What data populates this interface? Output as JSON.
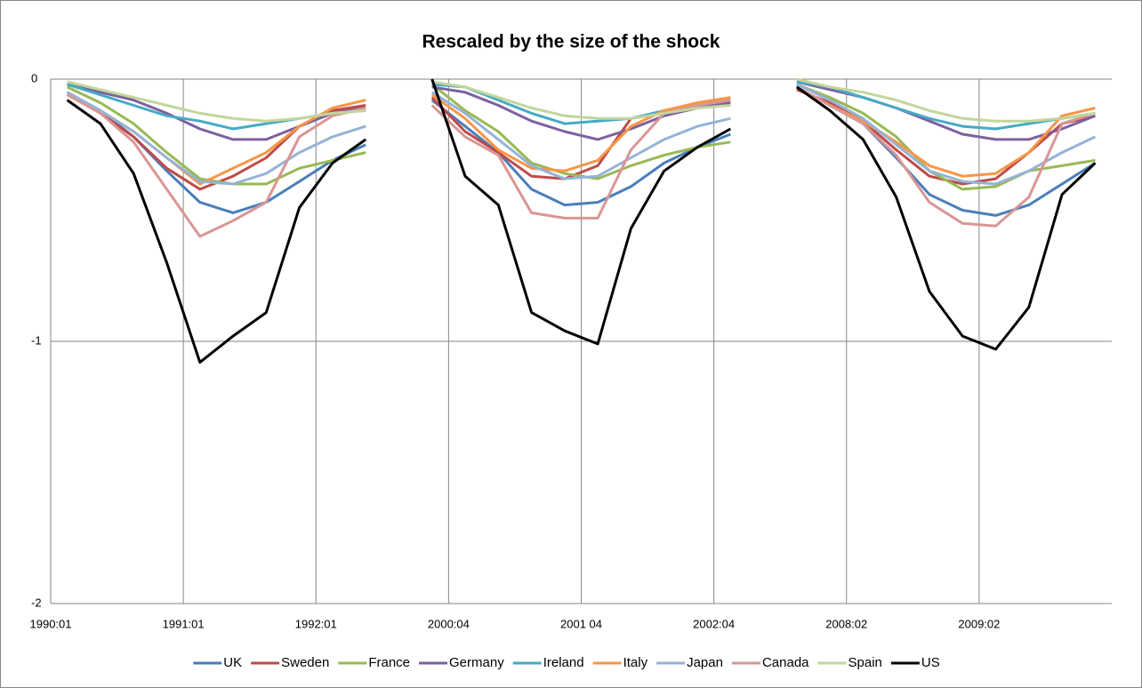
{
  "chart_data": {
    "type": "line",
    "title": "Rescaled by the size of the shock",
    "categories": [
      "1990:01",
      null,
      null,
      null,
      "1991:01",
      null,
      null,
      null,
      "1992:01",
      null,
      null,
      null,
      "2000:04",
      null,
      null,
      null,
      "2001 04",
      null,
      null,
      null,
      "2002:04",
      null,
      null,
      null,
      "2008:02",
      null,
      null,
      null,
      "2009:02",
      null,
      null,
      null
    ],
    "ylim": [
      -2,
      0
    ],
    "yticks": [
      -2,
      -1,
      0
    ],
    "grid": true,
    "legend": "bottom",
    "series": [
      {
        "name": "UK",
        "color": "#4a7ebb",
        "values": [
          -0.05,
          -0.12,
          -0.22,
          -0.35,
          -0.47,
          -0.51,
          -0.47,
          -0.39,
          -0.31,
          -0.25,
          null,
          -0.08,
          -0.18,
          -0.28,
          -0.42,
          -0.48,
          -0.47,
          -0.41,
          -0.32,
          -0.26,
          -0.21,
          null,
          -0.03,
          -0.1,
          -0.17,
          -0.3,
          -0.44,
          -0.5,
          -0.52,
          -0.48,
          -0.4,
          -0.32
        ]
      },
      {
        "name": "Sweden",
        "color": "#be4b48",
        "values": [
          -0.05,
          -0.13,
          -0.22,
          -0.34,
          -0.42,
          -0.37,
          -0.3,
          -0.18,
          -0.12,
          -0.1,
          null,
          -0.07,
          -0.2,
          -0.28,
          -0.37,
          -0.38,
          -0.33,
          -0.15,
          -0.13,
          -0.1,
          -0.08,
          null,
          -0.04,
          -0.09,
          -0.16,
          -0.27,
          -0.37,
          -0.4,
          -0.38,
          -0.28,
          -0.17,
          -0.14
        ]
      },
      {
        "name": "France",
        "color": "#98b954",
        "values": [
          -0.03,
          -0.09,
          -0.17,
          -0.28,
          -0.38,
          -0.4,
          -0.4,
          -0.34,
          -0.31,
          -0.28,
          null,
          -0.02,
          -0.12,
          -0.2,
          -0.32,
          -0.36,
          -0.38,
          -0.33,
          -0.29,
          -0.26,
          -0.24,
          null,
          -0.02,
          -0.07,
          -0.13,
          -0.22,
          -0.35,
          -0.42,
          -0.41,
          -0.35,
          -0.33,
          -0.31
        ]
      },
      {
        "name": "Germany",
        "color": "#7d60a0",
        "values": [
          -0.02,
          -0.05,
          -0.08,
          -0.13,
          -0.19,
          -0.23,
          -0.23,
          -0.18,
          -0.13,
          -0.11,
          null,
          -0.03,
          -0.05,
          -0.1,
          -0.16,
          -0.2,
          -0.23,
          -0.19,
          -0.14,
          -0.11,
          -0.09,
          null,
          -0.01,
          -0.04,
          -0.07,
          -0.11,
          -0.16,
          -0.21,
          -0.23,
          -0.23,
          -0.19,
          -0.14
        ]
      },
      {
        "name": "Ireland",
        "color": "#46aac5",
        "values": [
          -0.02,
          -0.06,
          -0.1,
          -0.14,
          -0.16,
          -0.19,
          -0.17,
          -0.15,
          -0.13,
          -0.12,
          null,
          -0.02,
          -0.03,
          -0.08,
          -0.13,
          -0.17,
          -0.16,
          -0.15,
          -0.12,
          -0.1,
          -0.08,
          null,
          -0.01,
          -0.03,
          -0.07,
          -0.11,
          -0.15,
          -0.18,
          -0.19,
          -0.17,
          -0.15,
          -0.13
        ]
      },
      {
        "name": "Italy",
        "color": "#f79646",
        "values": [
          -0.06,
          -0.12,
          -0.2,
          -0.3,
          -0.4,
          -0.34,
          -0.28,
          -0.18,
          -0.11,
          -0.08,
          null,
          -0.06,
          -0.15,
          -0.27,
          -0.34,
          -0.35,
          -0.31,
          -0.18,
          -0.12,
          -0.09,
          -0.07,
          null,
          -0.03,
          -0.1,
          -0.16,
          -0.24,
          -0.33,
          -0.37,
          -0.36,
          -0.28,
          -0.14,
          -0.11
        ]
      },
      {
        "name": "Japan",
        "color": "#95b3d7",
        "values": [
          -0.05,
          -0.12,
          -0.2,
          -0.3,
          -0.39,
          -0.4,
          -0.36,
          -0.28,
          -0.22,
          -0.18,
          null,
          -0.05,
          -0.13,
          -0.23,
          -0.33,
          -0.38,
          -0.37,
          -0.3,
          -0.23,
          -0.18,
          -0.15,
          null,
          -0.02,
          -0.08,
          -0.15,
          -0.25,
          -0.35,
          -0.39,
          -0.4,
          -0.35,
          -0.28,
          -0.22
        ]
      },
      {
        "name": "Canada",
        "color": "#d99694",
        "values": [
          -0.06,
          -0.13,
          -0.24,
          -0.42,
          -0.6,
          -0.54,
          -0.47,
          -0.22,
          -0.14,
          -0.11,
          null,
          -0.1,
          -0.22,
          -0.29,
          -0.51,
          -0.53,
          -0.53,
          -0.27,
          -0.13,
          -0.1,
          -0.08,
          null,
          -0.03,
          -0.1,
          -0.17,
          -0.29,
          -0.47,
          -0.55,
          -0.56,
          -0.45,
          -0.17,
          -0.13
        ]
      },
      {
        "name": "Spain",
        "color": "#c3d69b",
        "values": [
          -0.01,
          -0.04,
          -0.07,
          -0.1,
          -0.13,
          -0.15,
          -0.16,
          -0.15,
          -0.13,
          -0.12,
          null,
          -0.01,
          -0.03,
          -0.07,
          -0.11,
          -0.14,
          -0.15,
          -0.15,
          -0.13,
          -0.11,
          -0.1,
          null,
          0,
          -0.03,
          -0.05,
          -0.08,
          -0.12,
          -0.15,
          -0.16,
          -0.16,
          -0.15,
          -0.13
        ]
      },
      {
        "name": "US",
        "color": "#000000",
        "values": [
          -0.08,
          -0.17,
          -0.36,
          -0.7,
          -1.08,
          -0.98,
          -0.89,
          -0.49,
          -0.32,
          -0.23,
          null,
          0,
          -0.37,
          -0.48,
          -0.89,
          -0.96,
          -1.01,
          -0.57,
          -0.35,
          -0.26,
          -0.19,
          null,
          -0.03,
          -0.12,
          -0.23,
          -0.45,
          -0.81,
          -0.98,
          -1.03,
          -0.87,
          -0.44,
          -0.32
        ]
      }
    ]
  }
}
